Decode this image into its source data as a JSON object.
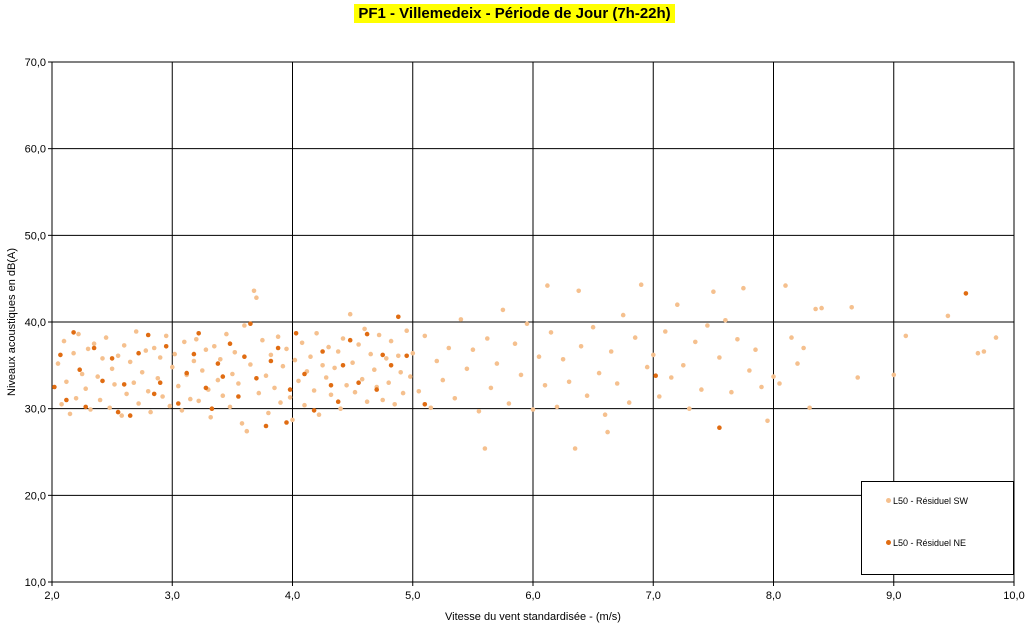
{
  "chart_data": {
    "type": "scatter",
    "title": "PF1 - Villemedeix - Période de Jour (7h-22h)",
    "xlabel": "Vitesse du vent standardisée - (m/s)",
    "ylabel": "Niveaux acoustiques en dB(A)",
    "xlim": [
      2.0,
      10.0
    ],
    "ylim": [
      10.0,
      70.0
    ],
    "xticks": [
      "2,0",
      "3,0",
      "4,0",
      "5,0",
      "6,0",
      "7,0",
      "8,0",
      "9,0",
      "10,0"
    ],
    "yticks": [
      "10,0",
      "20,0",
      "30,0",
      "40,0",
      "50,0",
      "60,0",
      "70,0"
    ],
    "grid": true,
    "legend_position": "bottom-right",
    "series": [
      {
        "name": "L50 - Résiduel SW",
        "color": "#f5c08e",
        "points": [
          [
            2.05,
            35.2
          ],
          [
            2.08,
            30.5
          ],
          [
            2.1,
            37.8
          ],
          [
            2.12,
            33.1
          ],
          [
            2.15,
            29.4
          ],
          [
            2.18,
            36.4
          ],
          [
            2.2,
            31.2
          ],
          [
            2.22,
            38.6
          ],
          [
            2.25,
            34.0
          ],
          [
            2.28,
            32.3
          ],
          [
            2.3,
            36.9
          ],
          [
            2.32,
            29.9
          ],
          [
            2.35,
            37.5
          ],
          [
            2.38,
            33.7
          ],
          [
            2.4,
            31.0
          ],
          [
            2.42,
            35.8
          ],
          [
            2.45,
            38.2
          ],
          [
            2.48,
            30.1
          ],
          [
            2.5,
            34.6
          ],
          [
            2.52,
            32.8
          ],
          [
            2.55,
            36.1
          ],
          [
            2.58,
            29.2
          ],
          [
            2.6,
            37.3
          ],
          [
            2.62,
            31.7
          ],
          [
            2.65,
            35.4
          ],
          [
            2.68,
            33.0
          ],
          [
            2.7,
            38.9
          ],
          [
            2.72,
            30.6
          ],
          [
            2.75,
            34.2
          ],
          [
            2.78,
            36.7
          ],
          [
            2.8,
            32.0
          ],
          [
            2.82,
            29.6
          ],
          [
            2.85,
            37.0
          ],
          [
            2.88,
            33.5
          ],
          [
            2.9,
            35.9
          ],
          [
            2.92,
            31.4
          ],
          [
            2.95,
            38.4
          ],
          [
            2.98,
            30.3
          ],
          [
            3.0,
            34.8
          ],
          [
            3.02,
            36.3
          ],
          [
            3.05,
            32.6
          ],
          [
            3.08,
            29.8
          ],
          [
            3.1,
            37.7
          ],
          [
            3.12,
            33.9
          ],
          [
            3.15,
            31.1
          ],
          [
            3.18,
            35.5
          ],
          [
            3.2,
            38.0
          ],
          [
            3.22,
            30.9
          ],
          [
            3.25,
            34.4
          ],
          [
            3.28,
            36.8
          ],
          [
            3.3,
            32.2
          ],
          [
            3.32,
            29.0
          ],
          [
            3.35,
            37.2
          ],
          [
            3.38,
            33.3
          ],
          [
            3.4,
            35.7
          ],
          [
            3.42,
            31.5
          ],
          [
            3.45,
            38.6
          ],
          [
            3.48,
            30.2
          ],
          [
            3.5,
            34.0
          ],
          [
            3.52,
            36.5
          ],
          [
            3.55,
            32.9
          ],
          [
            3.58,
            28.3
          ],
          [
            3.6,
            39.6
          ],
          [
            3.62,
            27.4
          ],
          [
            3.65,
            35.1
          ],
          [
            3.68,
            43.6
          ],
          [
            3.7,
            42.8
          ],
          [
            3.72,
            31.8
          ],
          [
            3.75,
            37.9
          ],
          [
            3.78,
            33.8
          ],
          [
            3.8,
            29.5
          ],
          [
            3.82,
            36.2
          ],
          [
            3.85,
            32.4
          ],
          [
            3.88,
            38.3
          ],
          [
            3.9,
            30.7
          ],
          [
            3.92,
            34.9
          ],
          [
            3.95,
            36.9
          ],
          [
            3.98,
            31.3
          ],
          [
            4.0,
            28.7
          ],
          [
            4.02,
            35.6
          ],
          [
            4.05,
            33.2
          ],
          [
            4.08,
            37.6
          ],
          [
            4.1,
            30.4
          ],
          [
            4.12,
            34.3
          ],
          [
            4.15,
            36.0
          ],
          [
            4.18,
            32.1
          ],
          [
            4.2,
            38.7
          ],
          [
            4.22,
            29.3
          ],
          [
            4.25,
            35.0
          ],
          [
            4.28,
            33.6
          ],
          [
            4.3,
            37.1
          ],
          [
            4.32,
            31.6
          ],
          [
            4.35,
            34.7
          ],
          [
            4.38,
            36.6
          ],
          [
            4.4,
            30.0
          ],
          [
            4.42,
            38.1
          ],
          [
            4.45,
            32.7
          ],
          [
            4.48,
            40.9
          ],
          [
            4.5,
            35.3
          ],
          [
            4.52,
            31.9
          ],
          [
            4.55,
            37.4
          ],
          [
            4.58,
            33.4
          ],
          [
            4.6,
            39.2
          ],
          [
            4.62,
            30.8
          ],
          [
            4.65,
            36.3
          ],
          [
            4.68,
            34.5
          ],
          [
            4.7,
            32.5
          ],
          [
            4.72,
            38.5
          ],
          [
            4.75,
            31.0
          ],
          [
            4.78,
            35.8
          ],
          [
            4.8,
            33.0
          ],
          [
            4.82,
            37.8
          ],
          [
            4.85,
            30.5
          ],
          [
            4.88,
            36.1
          ],
          [
            4.9,
            34.2
          ],
          [
            4.92,
            31.8
          ],
          [
            4.95,
            39.0
          ],
          [
            4.98,
            33.7
          ],
          [
            5.0,
            36.4
          ],
          [
            5.05,
            32.0
          ],
          [
            5.1,
            38.4
          ],
          [
            5.15,
            30.1
          ],
          [
            5.2,
            35.5
          ],
          [
            5.25,
            33.3
          ],
          [
            5.3,
            37.0
          ],
          [
            5.35,
            31.2
          ],
          [
            5.4,
            40.3
          ],
          [
            5.45,
            34.6
          ],
          [
            5.5,
            36.8
          ],
          [
            5.55,
            29.7
          ],
          [
            5.6,
            25.4
          ],
          [
            5.62,
            38.1
          ],
          [
            5.65,
            32.4
          ],
          [
            5.7,
            35.2
          ],
          [
            5.75,
            41.4
          ],
          [
            5.8,
            30.6
          ],
          [
            5.85,
            37.5
          ],
          [
            5.9,
            33.9
          ],
          [
            5.95,
            39.8
          ],
          [
            6.0,
            29.9
          ],
          [
            6.05,
            36.0
          ],
          [
            6.1,
            32.7
          ],
          [
            6.12,
            44.2
          ],
          [
            6.15,
            38.8
          ],
          [
            6.2,
            30.2
          ],
          [
            6.25,
            35.7
          ],
          [
            6.3,
            33.1
          ],
          [
            6.35,
            25.4
          ],
          [
            6.38,
            43.6
          ],
          [
            6.4,
            37.2
          ],
          [
            6.45,
            31.5
          ],
          [
            6.5,
            39.4
          ],
          [
            6.55,
            34.1
          ],
          [
            6.6,
            29.3
          ],
          [
            6.62,
            27.3
          ],
          [
            6.65,
            36.6
          ],
          [
            6.7,
            32.9
          ],
          [
            6.75,
            40.8
          ],
          [
            6.8,
            30.7
          ],
          [
            6.85,
            38.2
          ],
          [
            6.9,
            44.3
          ],
          [
            6.95,
            34.8
          ],
          [
            7.0,
            36.2
          ],
          [
            7.05,
            31.4
          ],
          [
            7.1,
            38.9
          ],
          [
            7.15,
            33.6
          ],
          [
            7.2,
            42.0
          ],
          [
            7.25,
            35.0
          ],
          [
            7.3,
            30.0
          ],
          [
            7.35,
            37.7
          ],
          [
            7.4,
            32.2
          ],
          [
            7.45,
            39.6
          ],
          [
            7.5,
            43.5
          ],
          [
            7.55,
            35.9
          ],
          [
            7.6,
            40.2
          ],
          [
            7.65,
            31.9
          ],
          [
            7.7,
            38.0
          ],
          [
            7.75,
            43.9
          ],
          [
            7.8,
            34.4
          ],
          [
            7.85,
            36.8
          ],
          [
            7.9,
            32.5
          ],
          [
            7.95,
            28.6
          ],
          [
            8.0,
            33.7
          ],
          [
            8.05,
            32.9
          ],
          [
            8.1,
            44.2
          ],
          [
            8.15,
            38.2
          ],
          [
            8.2,
            35.2
          ],
          [
            8.25,
            37.0
          ],
          [
            8.3,
            30.1
          ],
          [
            8.35,
            41.5
          ],
          [
            8.4,
            41.6
          ],
          [
            8.65,
            41.7
          ],
          [
            8.7,
            33.6
          ],
          [
            9.0,
            33.9
          ],
          [
            9.1,
            38.4
          ],
          [
            9.45,
            40.7
          ],
          [
            9.7,
            36.4
          ],
          [
            9.75,
            36.6
          ],
          [
            9.85,
            38.2
          ]
        ]
      },
      {
        "name": "L50 - Résiduel NE",
        "color": "#e06c12",
        "points": [
          [
            2.02,
            32.5
          ],
          [
            2.07,
            36.2
          ],
          [
            2.12,
            31.0
          ],
          [
            2.18,
            38.8
          ],
          [
            2.23,
            34.5
          ],
          [
            2.28,
            30.2
          ],
          [
            2.35,
            37.0
          ],
          [
            2.42,
            33.2
          ],
          [
            2.5,
            35.8
          ],
          [
            2.55,
            29.6
          ],
          [
            2.6,
            32.8
          ],
          [
            2.65,
            29.2
          ],
          [
            2.72,
            36.4
          ],
          [
            2.8,
            38.5
          ],
          [
            2.85,
            31.7
          ],
          [
            2.9,
            33.0
          ],
          [
            2.95,
            37.2
          ],
          [
            3.05,
            30.6
          ],
          [
            3.12,
            34.1
          ],
          [
            3.18,
            36.3
          ],
          [
            3.22,
            38.7
          ],
          [
            3.28,
            32.4
          ],
          [
            3.33,
            30.0
          ],
          [
            3.38,
            35.2
          ],
          [
            3.42,
            33.7
          ],
          [
            3.48,
            37.5
          ],
          [
            3.55,
            31.4
          ],
          [
            3.6,
            36.0
          ],
          [
            3.65,
            39.8
          ],
          [
            3.7,
            33.5
          ],
          [
            3.78,
            28.0
          ],
          [
            3.82,
            35.5
          ],
          [
            3.88,
            37.0
          ],
          [
            3.95,
            28.4
          ],
          [
            3.98,
            32.2
          ],
          [
            4.03,
            38.7
          ],
          [
            4.1,
            34.0
          ],
          [
            4.18,
            29.8
          ],
          [
            4.25,
            36.6
          ],
          [
            4.32,
            32.7
          ],
          [
            4.38,
            30.8
          ],
          [
            4.42,
            35.0
          ],
          [
            4.48,
            37.9
          ],
          [
            4.55,
            33.0
          ],
          [
            4.62,
            38.6
          ],
          [
            4.7,
            32.2
          ],
          [
            4.75,
            36.2
          ],
          [
            4.82,
            35.0
          ],
          [
            4.88,
            40.6
          ],
          [
            4.95,
            36.1
          ],
          [
            5.1,
            30.5
          ],
          [
            7.02,
            33.8
          ],
          [
            7.55,
            27.8
          ],
          [
            9.6,
            43.3
          ]
        ]
      }
    ]
  }
}
